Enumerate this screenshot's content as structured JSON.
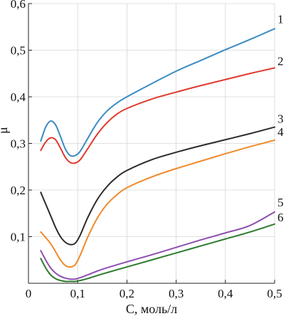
{
  "chart_data": {
    "type": "line",
    "title": "",
    "xlabel": "C, моль/л",
    "ylabel": "μ",
    "xlim": [
      0,
      0.5
    ],
    "ylim": [
      0,
      0.6
    ],
    "x_ticks": [
      0,
      0.1,
      0.2,
      0.3,
      0.4,
      0.5
    ],
    "x_tick_labels": [
      "0",
      "0,1",
      "0,2",
      "0,3",
      "0,4",
      "0,5"
    ],
    "y_ticks": [
      0.1,
      0.2,
      0.3,
      0.4,
      0.5,
      0.6
    ],
    "y_tick_labels": [
      "0,1",
      "0,2",
      "0,3",
      "0,4",
      "0,5",
      "0,6"
    ],
    "grid": true,
    "series": [
      {
        "label": "1",
        "color": "#3b8bc2",
        "x": [
          0.025,
          0.035,
          0.045,
          0.055,
          0.065,
          0.075,
          0.085,
          0.095,
          0.105,
          0.12,
          0.14,
          0.16,
          0.18,
          0.2,
          0.25,
          0.3,
          0.35,
          0.4,
          0.45,
          0.5
        ],
        "y": [
          0.305,
          0.335,
          0.348,
          0.34,
          0.315,
          0.288,
          0.274,
          0.274,
          0.283,
          0.31,
          0.345,
          0.37,
          0.387,
          0.4,
          0.428,
          0.455,
          0.478,
          0.501,
          0.523,
          0.546
        ]
      },
      {
        "label": "2",
        "color": "#e03a2f",
        "x": [
          0.025,
          0.035,
          0.045,
          0.055,
          0.065,
          0.075,
          0.085,
          0.095,
          0.105,
          0.12,
          0.14,
          0.16,
          0.18,
          0.2,
          0.25,
          0.3,
          0.35,
          0.4,
          0.45,
          0.5
        ],
        "y": [
          0.285,
          0.303,
          0.312,
          0.308,
          0.29,
          0.27,
          0.259,
          0.258,
          0.265,
          0.288,
          0.32,
          0.345,
          0.363,
          0.375,
          0.395,
          0.41,
          0.424,
          0.437,
          0.45,
          0.462
        ]
      },
      {
        "label": "3",
        "color": "#2b2b2b",
        "x": [
          0.025,
          0.035,
          0.045,
          0.055,
          0.065,
          0.075,
          0.085,
          0.095,
          0.105,
          0.12,
          0.14,
          0.16,
          0.18,
          0.2,
          0.25,
          0.3,
          0.35,
          0.4,
          0.45,
          0.5
        ],
        "y": [
          0.195,
          0.17,
          0.145,
          0.12,
          0.1,
          0.088,
          0.083,
          0.086,
          0.103,
          0.14,
          0.18,
          0.208,
          0.228,
          0.242,
          0.265,
          0.281,
          0.295,
          0.308,
          0.321,
          0.335
        ]
      },
      {
        "label": "4",
        "color": "#f08a2c",
        "x": [
          0.025,
          0.035,
          0.045,
          0.055,
          0.065,
          0.075,
          0.085,
          0.095,
          0.105,
          0.12,
          0.14,
          0.16,
          0.18,
          0.2,
          0.25,
          0.3,
          0.35,
          0.4,
          0.45,
          0.5
        ],
        "y": [
          0.11,
          0.098,
          0.085,
          0.068,
          0.05,
          0.038,
          0.035,
          0.04,
          0.06,
          0.098,
          0.14,
          0.17,
          0.19,
          0.205,
          0.228,
          0.246,
          0.262,
          0.278,
          0.293,
          0.307
        ]
      },
      {
        "label": "5",
        "color": "#8e4fb0",
        "x": [
          0.025,
          0.035,
          0.045,
          0.055,
          0.065,
          0.075,
          0.085,
          0.095,
          0.105,
          0.12,
          0.15,
          0.2,
          0.25,
          0.3,
          0.35,
          0.4,
          0.45,
          0.5
        ],
        "y": [
          0.07,
          0.05,
          0.033,
          0.022,
          0.015,
          0.011,
          0.009,
          0.009,
          0.012,
          0.018,
          0.03,
          0.046,
          0.061,
          0.077,
          0.093,
          0.108,
          0.124,
          0.153
        ]
      },
      {
        "label": "6",
        "color": "#2d7a2d",
        "x": [
          0.025,
          0.035,
          0.045,
          0.055,
          0.065,
          0.075,
          0.085,
          0.095,
          0.105,
          0.12,
          0.15,
          0.2,
          0.25,
          0.3,
          0.35,
          0.4,
          0.45,
          0.5
        ],
        "y": [
          0.053,
          0.033,
          0.018,
          0.01,
          0.006,
          0.004,
          0.004,
          0.004,
          0.006,
          0.01,
          0.02,
          0.035,
          0.05,
          0.065,
          0.08,
          0.095,
          0.11,
          0.127
        ]
      }
    ]
  }
}
